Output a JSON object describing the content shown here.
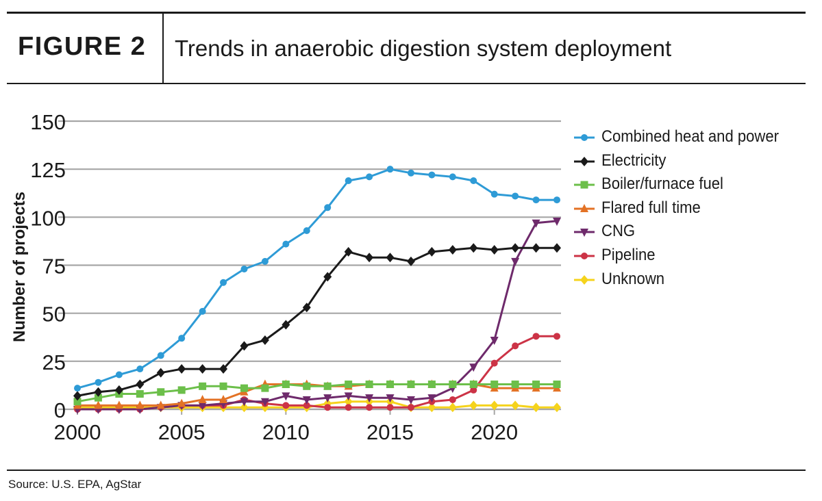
{
  "header": {
    "figure_label": "FIGURE 2",
    "title": "Trends in anaerobic digestion system deployment"
  },
  "footer": {
    "source": "Source: U.S. EPA, AgStar"
  },
  "chart_data": {
    "type": "line",
    "title": "Trends in anaerobic digestion system deployment",
    "xlabel": "",
    "ylabel": "Number of projects",
    "xlim": [
      2000,
      2023
    ],
    "ylim": [
      0,
      150
    ],
    "x_ticks": [
      2000,
      2005,
      2010,
      2015,
      2020
    ],
    "y_ticks": [
      0,
      25,
      50,
      75,
      100,
      125,
      150
    ],
    "grid": "horizontal",
    "legend_position": "right",
    "x": [
      2000,
      2001,
      2002,
      2003,
      2004,
      2005,
      2006,
      2007,
      2008,
      2009,
      2010,
      2011,
      2012,
      2013,
      2014,
      2015,
      2016,
      2017,
      2018,
      2019,
      2020,
      2021,
      2022,
      2023
    ],
    "series": [
      {
        "name": "Combined heat and power",
        "color": "#2e9bd6",
        "marker": "circle",
        "values": [
          11,
          14,
          18,
          21,
          28,
          37,
          51,
          66,
          73,
          77,
          86,
          93,
          105,
          119,
          121,
          125,
          123,
          122,
          121,
          119,
          112,
          111,
          109,
          109
        ]
      },
      {
        "name": "Electricity",
        "color": "#1a1a1a",
        "marker": "diamond",
        "values": [
          7,
          9,
          10,
          13,
          19,
          21,
          21,
          21,
          33,
          36,
          44,
          53,
          69,
          82,
          79,
          79,
          77,
          82,
          83,
          84,
          83,
          84,
          84,
          84
        ]
      },
      {
        "name": "Boiler/furnace fuel",
        "color": "#6cbf4a",
        "marker": "square",
        "values": [
          4,
          6,
          8,
          8,
          9,
          10,
          12,
          12,
          11,
          11,
          13,
          12,
          12,
          13,
          13,
          13,
          13,
          13,
          13,
          13,
          13,
          13,
          13,
          13
        ]
      },
      {
        "name": "Flared full time",
        "color": "#e37225",
        "marker": "triangle-up",
        "values": [
          2,
          2,
          2,
          2,
          2,
          3,
          5,
          5,
          9,
          13,
          13,
          13,
          12,
          12,
          13,
          13,
          13,
          13,
          13,
          13,
          11,
          11,
          11,
          11
        ]
      },
      {
        "name": "CNG",
        "color": "#6e2a6b",
        "marker": "triangle-down",
        "values": [
          0,
          0,
          0,
          0,
          1,
          2,
          2,
          3,
          4,
          4,
          7,
          5,
          6,
          7,
          6,
          6,
          5,
          6,
          11,
          22,
          36,
          77,
          97,
          98
        ]
      },
      {
        "name": "Pipeline",
        "color": "#cc3346",
        "marker": "circle",
        "values": [
          0,
          0,
          0,
          0,
          1,
          2,
          2,
          2,
          5,
          3,
          2,
          2,
          1,
          1,
          1,
          1,
          1,
          4,
          5,
          10,
          24,
          33,
          38,
          38
        ]
      },
      {
        "name": "Unknown",
        "color": "#f5d31c",
        "marker": "diamond",
        "values": [
          1,
          1,
          1,
          1,
          1,
          1,
          1,
          1,
          1,
          1,
          1,
          1,
          3,
          4,
          4,
          4,
          1,
          1,
          1,
          2,
          2,
          2,
          1,
          1
        ]
      }
    ]
  }
}
